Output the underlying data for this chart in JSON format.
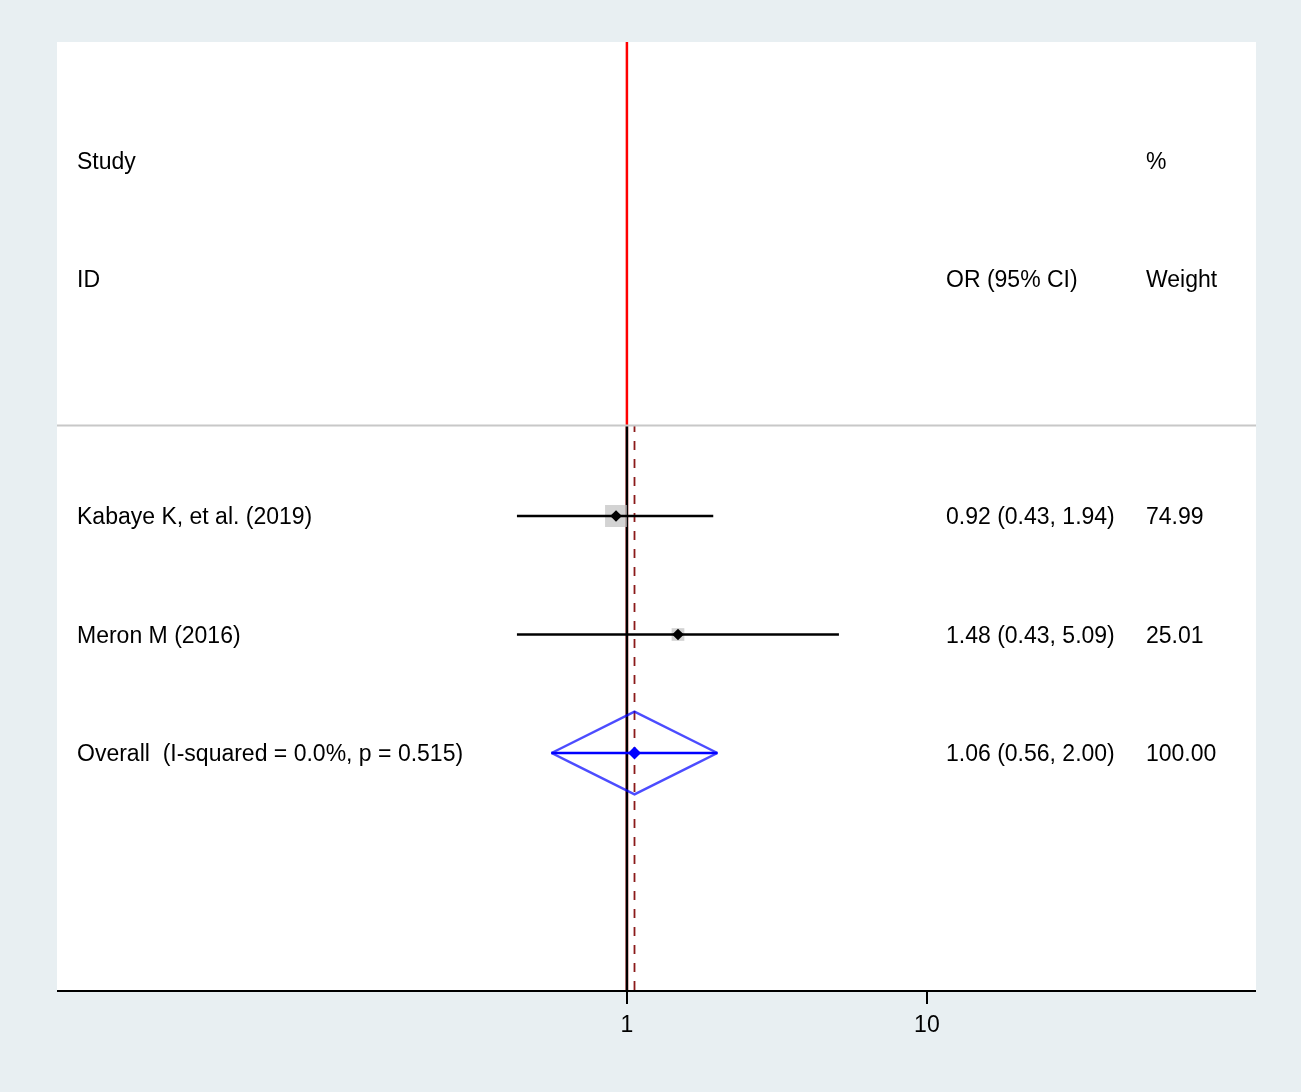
{
  "chart_data": {
    "type": "scatter",
    "orientation": "horizontal",
    "log": "x",
    "grid": false,
    "categories": [
      "Kabaye K, et al. (2019)",
      "Meron M (2016)",
      "Overall  (I-squared = 0.0%, p = 0.515)"
    ],
    "series": [
      {
        "marker": "square",
        "color": "#c0c0c0",
        "values": [
          0.92,
          1.48,
          null
        ],
        "sizes": [
          1,
          0.3335,
          null
        ]
      },
      {
        "marker": "diamond",
        "color": "#000000",
        "values": [
          0.92,
          1.48,
          null
        ],
        "errors": [
          [
            0.43,
            1.94
          ],
          [
            0.43,
            5.09
          ],
          null
        ]
      },
      {
        "marker": "diamond",
        "color": "#0000ff",
        "values": [
          null,
          null,
          1.06
        ],
        "errors": [
          null,
          null,
          [
            0.56,
            2.0
          ]
        ]
      }
    ],
    "xlim": [
      0.0126,
      125
    ],
    "xticks": [
      1,
      10
    ],
    "ref_lines": [
      {
        "axis": "x",
        "value": 1,
        "color": "#ff0000"
      },
      {
        "axis": "x",
        "value": 1,
        "color": "#000000"
      },
      {
        "axis": "x",
        "value": 1.06,
        "color": "#8b1a1a",
        "line_style": "dashed"
      }
    ],
    "annotations": [
      "Study",
      "%",
      "ID",
      "OR (95% CI)",
      "Weight",
      "0.92 (0.43, 1.94)",
      "74.99",
      "1.48 (0.43, 5.09)",
      "25.01",
      "1.06 (0.56, 2.00)",
      "100.00"
    ]
  }
}
